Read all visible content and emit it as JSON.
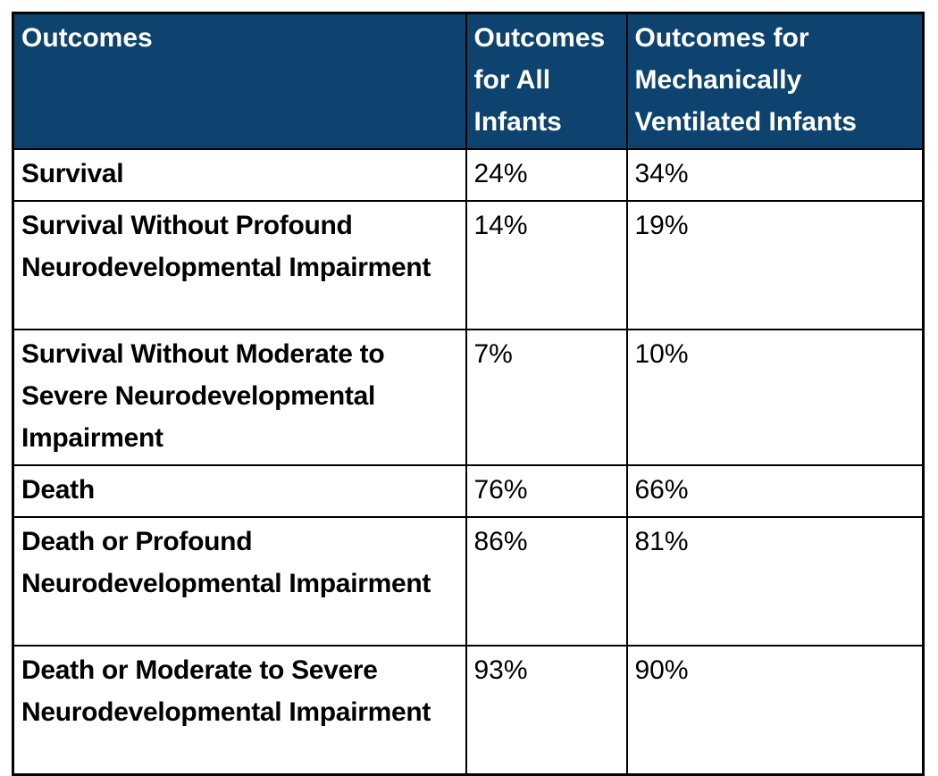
{
  "table": {
    "columns": [
      {
        "label": "Outcomes"
      },
      {
        "label": "Outcomes for All Infants"
      },
      {
        "label": "Outcomes for Mechanically Ventilated Infants"
      }
    ],
    "rows": [
      {
        "outcome": "Survival",
        "all_infants": "24%",
        "ventilated": "34%"
      },
      {
        "outcome": "Survival Without Profound Neurodevelopmental Impairment",
        "all_infants": "14%",
        "ventilated": "19%"
      },
      {
        "outcome": "Survival Without Moderate to Severe Neurodevelopmental Impairment",
        "all_infants": "7%",
        "ventilated": "10%"
      },
      {
        "outcome": "Death",
        "all_infants": "76%",
        "ventilated": "66%"
      },
      {
        "outcome": "Death or Profound Neurodevelopmental Impairment",
        "all_infants": "86%",
        "ventilated": "81%"
      },
      {
        "outcome": "Death or Moderate to Severe Neurodevelopmental Impairment",
        "all_infants": "93%",
        "ventilated": "90%"
      }
    ],
    "colors": {
      "header_background": "#0d436e",
      "header_text": "#ffffff",
      "body_text": "#000000",
      "border": "#000000"
    }
  },
  "chart_data": {
    "type": "table",
    "columns": [
      "Outcomes",
      "Outcomes for All Infants",
      "Outcomes for Mechanically Ventilated Infants"
    ],
    "rows": [
      [
        "Survival",
        "24%",
        "34%"
      ],
      [
        "Survival Without Profound Neurodevelopmental Impairment",
        "14%",
        "19%"
      ],
      [
        "Survival Without Moderate to Severe Neurodevelopmental Impairment",
        "7%",
        "10%"
      ],
      [
        "Death",
        "76%",
        "66%"
      ],
      [
        "Death or Profound Neurodevelopmental Impairment",
        "86%",
        "81%"
      ],
      [
        "Death or Moderate to Severe Neurodevelopmental Impairment",
        "93%",
        "90%"
      ]
    ],
    "values_numeric_percent": {
      "all_infants": [
        24,
        14,
        7,
        76,
        86,
        93
      ],
      "mechanically_ventilated": [
        34,
        19,
        10,
        66,
        81,
        90
      ]
    }
  }
}
